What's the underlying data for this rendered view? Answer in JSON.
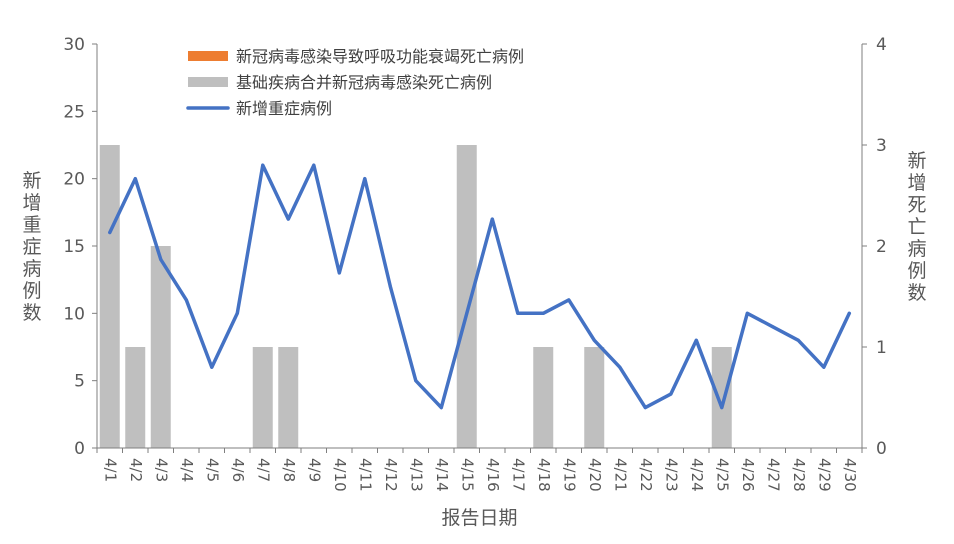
{
  "chart_data": {
    "type": "bar",
    "xlabel": "报告日期",
    "ylabel_left": "新增重症病例数",
    "ylabel_right": "新增死亡病例数",
    "ylim_left": [
      0,
      30
    ],
    "yticks_left": [
      0,
      5,
      10,
      15,
      20,
      25,
      30
    ],
    "ylim_right": [
      0,
      4
    ],
    "yticks_right": [
      0,
      1,
      2,
      3,
      4
    ],
    "legend_position": "top-center",
    "grid": false,
    "categories": [
      "4/1",
      "4/2",
      "4/3",
      "4/4",
      "4/5",
      "4/6",
      "4/7",
      "4/8",
      "4/9",
      "4/10",
      "4/11",
      "4/12",
      "4/13",
      "4/14",
      "4/15",
      "4/16",
      "4/17",
      "4/18",
      "4/19",
      "4/20",
      "4/21",
      "4/22",
      "4/23",
      "4/24",
      "4/25",
      "4/26",
      "4/27",
      "4/28",
      "4/29",
      "4/30"
    ],
    "series": [
      {
        "name": "新冠病毒感染导致呼吸功能衰竭死亡病例",
        "kind": "bar",
        "axis": "right",
        "color": "#ED7D31",
        "values": [
          0,
          0,
          0,
          0,
          0,
          0,
          0,
          0,
          0,
          0,
          0,
          0,
          0,
          0,
          0,
          0,
          0,
          0,
          0,
          0,
          0,
          0,
          0,
          0,
          0,
          0,
          0,
          0,
          0,
          0
        ]
      },
      {
        "name": "基础疾病合并新冠病毒感染死亡病例",
        "kind": "bar",
        "axis": "right",
        "color": "#BFBFBF",
        "values": [
          3,
          1,
          2,
          0,
          0,
          0,
          1,
          1,
          0,
          0,
          0,
          0,
          0,
          0,
          3,
          0,
          0,
          1,
          0,
          1,
          0,
          0,
          0,
          0,
          1,
          0,
          0,
          0,
          0,
          0
        ]
      },
      {
        "name": "新增重症病例",
        "kind": "line",
        "axis": "left",
        "color": "#4472C4",
        "values": [
          16,
          20,
          14,
          11,
          6,
          10,
          21,
          17,
          21,
          13,
          20,
          12,
          5,
          3,
          10,
          17,
          10,
          10,
          11,
          8,
          6,
          3,
          4,
          8,
          3,
          10,
          9,
          8,
          6,
          10
        ]
      }
    ]
  }
}
